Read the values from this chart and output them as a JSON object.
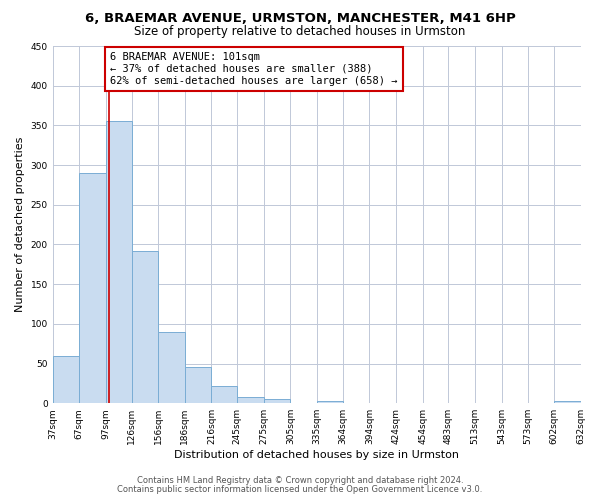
{
  "title": "6, BRAEMAR AVENUE, URMSTON, MANCHESTER, M41 6HP",
  "subtitle": "Size of property relative to detached houses in Urmston",
  "xlabel": "Distribution of detached houses by size in Urmston",
  "ylabel": "Number of detached properties",
  "bar_left_edges": [
    37,
    67,
    97,
    126,
    156,
    186,
    216,
    245,
    275,
    305,
    335,
    364,
    394,
    424,
    454,
    483,
    513,
    543,
    573,
    602
  ],
  "bar_widths": [
    30,
    30,
    29,
    30,
    30,
    30,
    29,
    30,
    30,
    30,
    29,
    30,
    30,
    30,
    29,
    30,
    30,
    30,
    29,
    30
  ],
  "bar_heights": [
    60,
    290,
    355,
    192,
    90,
    46,
    22,
    8,
    5,
    0,
    3,
    0,
    0,
    0,
    0,
    0,
    0,
    0,
    0,
    3
  ],
  "tick_labels": [
    "37sqm",
    "67sqm",
    "97sqm",
    "126sqm",
    "156sqm",
    "186sqm",
    "216sqm",
    "245sqm",
    "275sqm",
    "305sqm",
    "335sqm",
    "364sqm",
    "394sqm",
    "424sqm",
    "454sqm",
    "483sqm",
    "513sqm",
    "543sqm",
    "573sqm",
    "602sqm",
    "632sqm"
  ],
  "bar_color": "#c9dcf0",
  "bar_edge_color": "#7aadd4",
  "redline_x": 101,
  "annotation_title": "6 BRAEMAR AVENUE: 101sqm",
  "annotation_line1": "← 37% of detached houses are smaller (388)",
  "annotation_line2": "62% of semi-detached houses are larger (658) →",
  "annotation_box_color": "#ffffff",
  "annotation_box_edge": "#cc0000",
  "redline_color": "#cc0000",
  "ylim": [
    0,
    450
  ],
  "yticks": [
    0,
    50,
    100,
    150,
    200,
    250,
    300,
    350,
    400,
    450
  ],
  "footer1": "Contains HM Land Registry data © Crown copyright and database right 2024.",
  "footer2": "Contains public sector information licensed under the Open Government Licence v3.0.",
  "background_color": "#ffffff",
  "grid_color": "#c0c8d8",
  "title_fontsize": 9.5,
  "subtitle_fontsize": 8.5,
  "axis_label_fontsize": 8,
  "tick_fontsize": 6.5,
  "annotation_fontsize": 7.5,
  "footer_fontsize": 6.0
}
